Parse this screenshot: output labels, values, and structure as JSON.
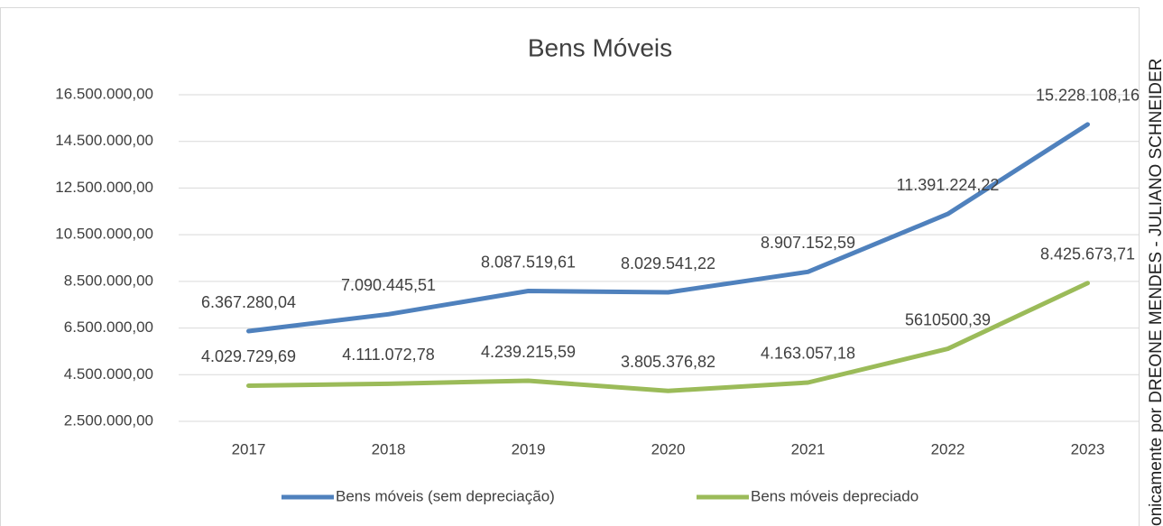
{
  "chart_data": {
    "type": "line",
    "title": "Bens Móveis",
    "categories": [
      "2017",
      "2018",
      "2019",
      "2020",
      "2021",
      "2022",
      "2023"
    ],
    "series": [
      {
        "name": "Bens móveis (sem depreciação)",
        "color": "#4f81bd",
        "values": [
          6367280.04,
          7090445.51,
          8087519.61,
          8029541.22,
          8907152.59,
          11391224.22,
          15228108.16
        ],
        "value_labels": [
          "6.367.280,04",
          "7.090.445,51",
          "8.087.519,61",
          "8.029.541,22",
          "8.907.152,59",
          "11.391.224,22",
          "15.228.108,16"
        ]
      },
      {
        "name": "Bens móveis depreciado",
        "color": "#9bbb59",
        "values": [
          4029729.69,
          4111072.78,
          4239215.59,
          3805376.82,
          4163057.18,
          5610500.39,
          8425673.71
        ],
        "value_labels": [
          "4.029.729,69",
          "4.111.072,78",
          "4.239.215,59",
          "3.805.376,82",
          "4.163.057,18",
          "5610500,39",
          "8.425.673,71"
        ]
      }
    ],
    "ylim": [
      2500000,
      16500000
    ],
    "yticks": [
      {
        "value": 2500000,
        "label": "2.500.000,00"
      },
      {
        "value": 4500000,
        "label": "4.500.000,00"
      },
      {
        "value": 6500000,
        "label": "6.500.000,00"
      },
      {
        "value": 8500000,
        "label": "8.500.000,00"
      },
      {
        "value": 10500000,
        "label": "10.500.000,00"
      },
      {
        "value": 12500000,
        "label": "12.500.000,00"
      },
      {
        "value": 14500000,
        "label": "14.500.000,00"
      },
      {
        "value": 16500000,
        "label": "16.500.000,00"
      }
    ],
    "grid": true,
    "legend": "bottom",
    "side_text": "onicamente por DREONE MENDES - JULIANO SCHNEIDER"
  }
}
